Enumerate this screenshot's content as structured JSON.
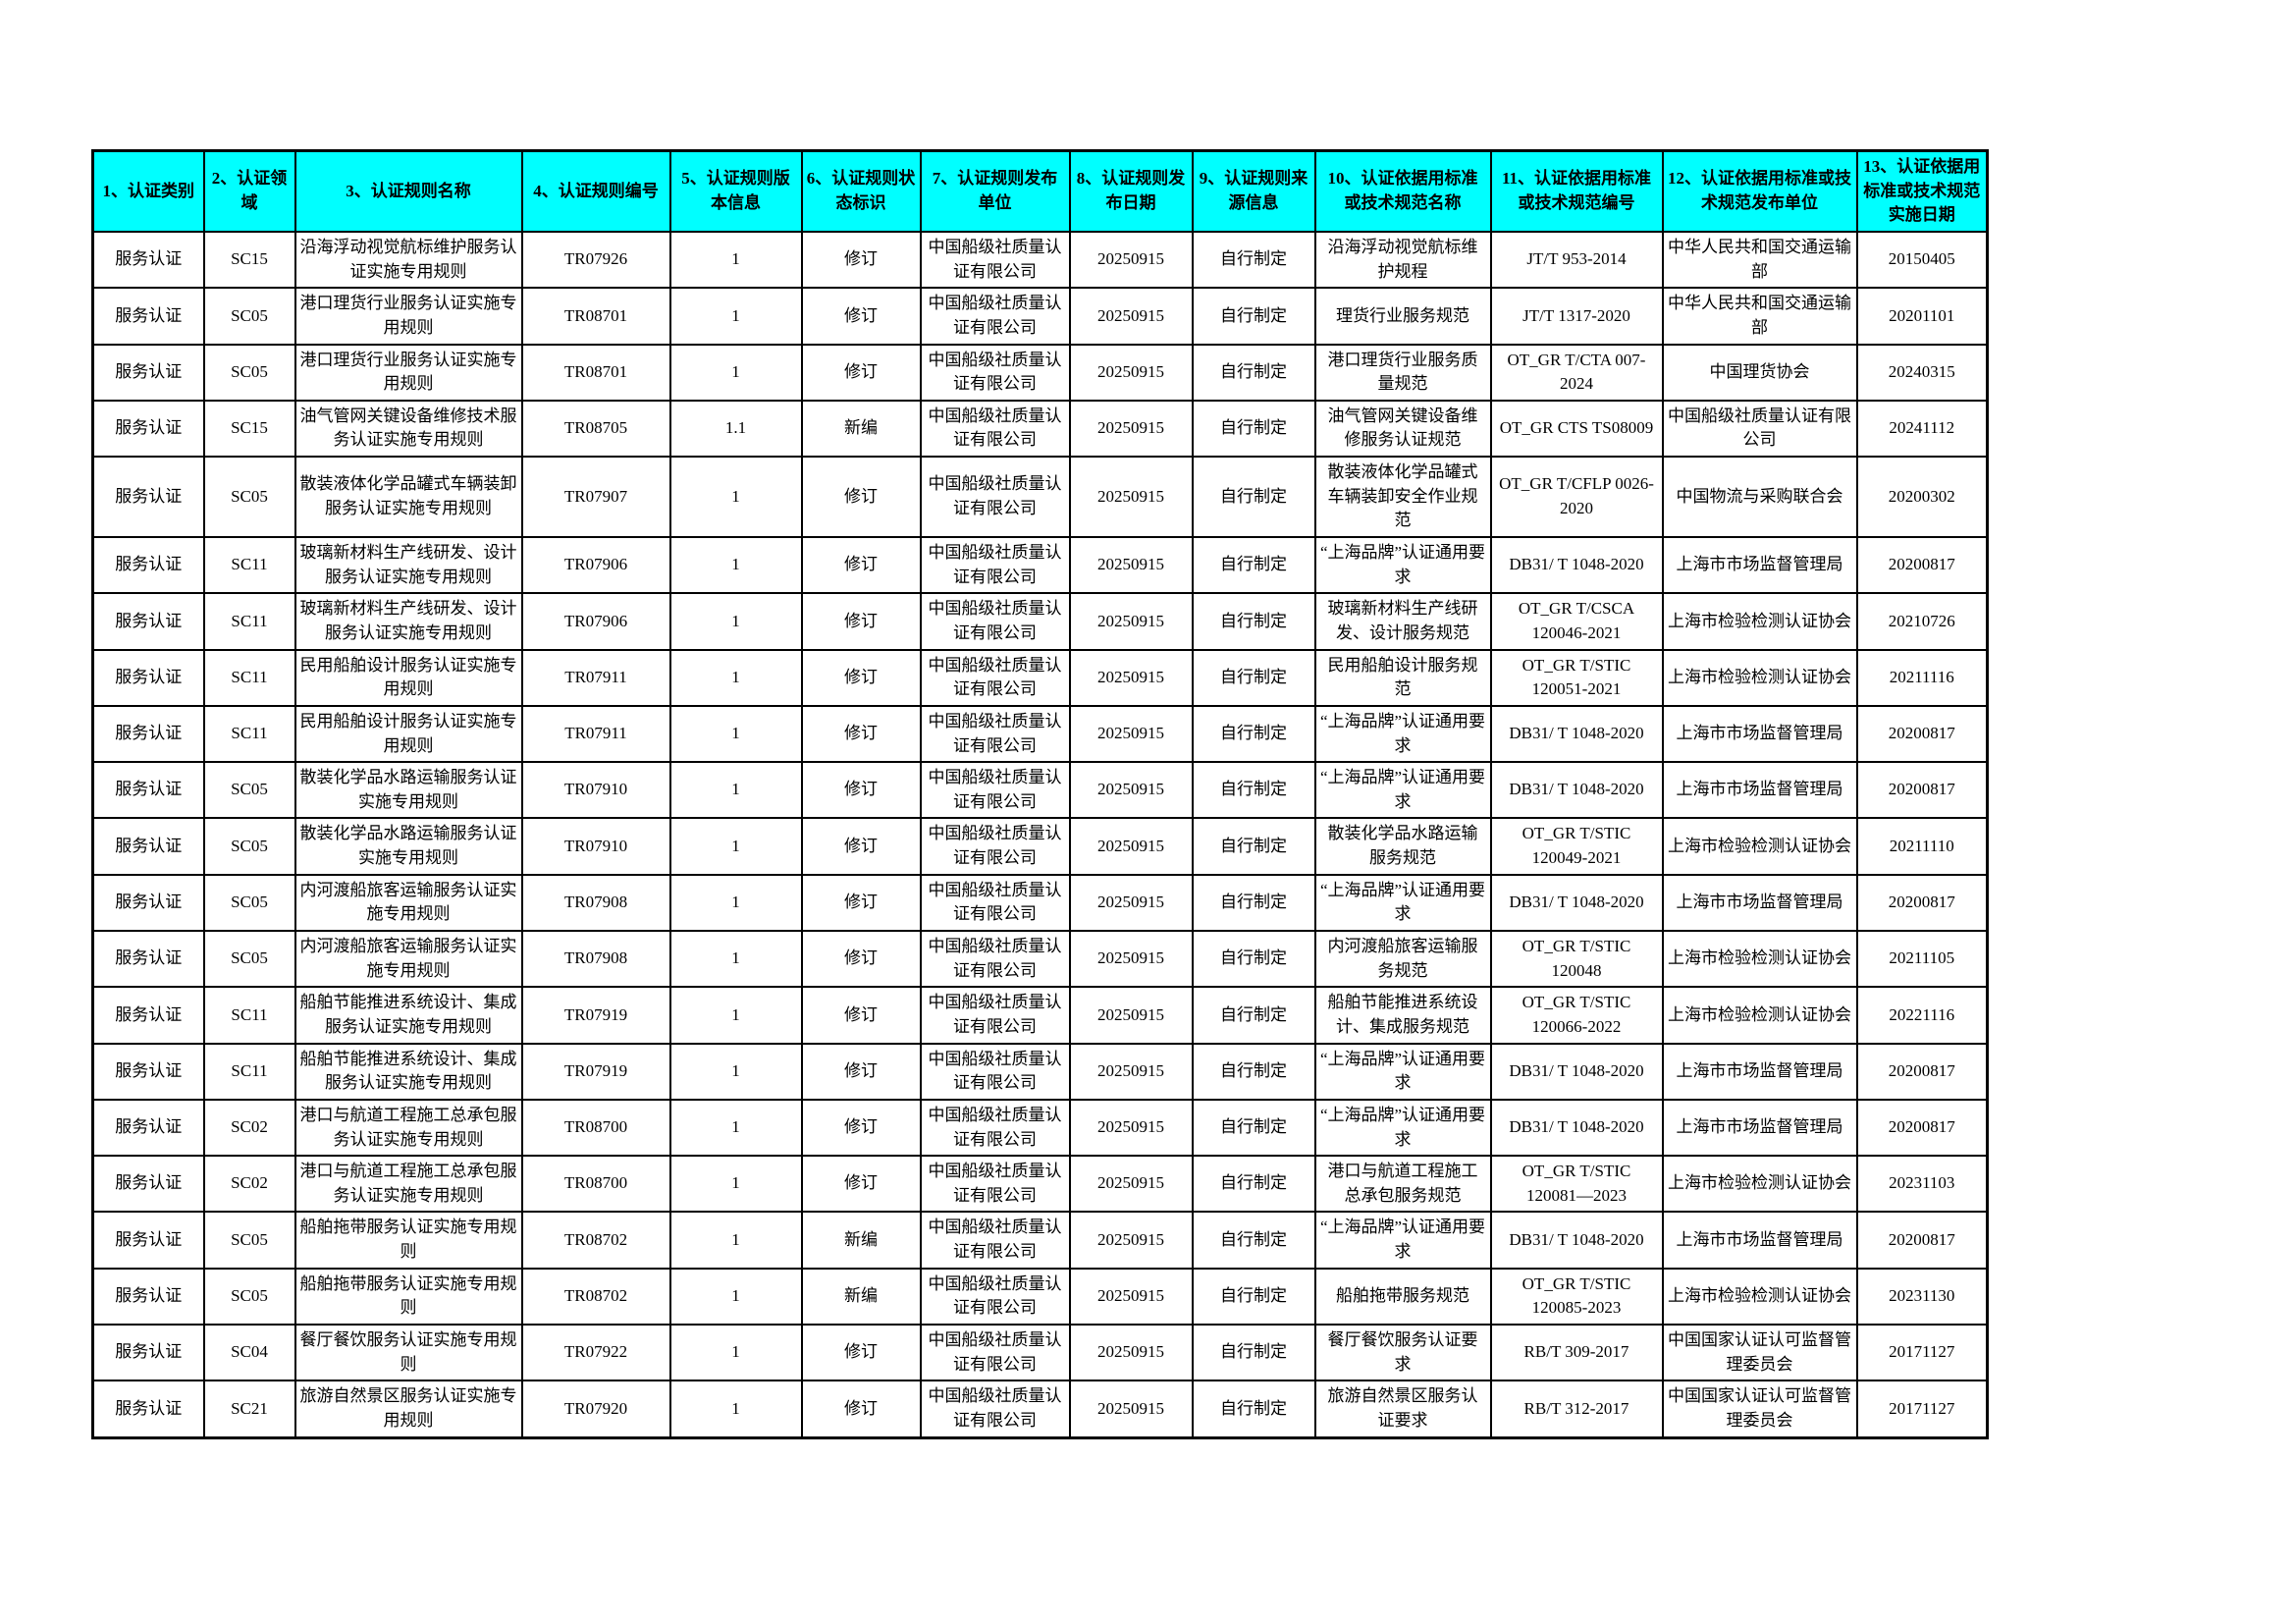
{
  "colors": {
    "header_bg": "#00FFFF",
    "border": "#000000",
    "page_bg": "#FFFFFF",
    "text": "#000000"
  },
  "table": {
    "columns": [
      "1、认证类别",
      "2、认证领域",
      "3、认证规则名称",
      "4、认证规则编号",
      "5、认证规则版本信息",
      "6、认证规则状态标识",
      "7、认证规则发布单位",
      "8、认证规则发布日期",
      "9、认证规则来源信息",
      "10、认证依据用标准或技术规范名称",
      "11、认证依据用标准或技术规范编号",
      "12、认证依据用标准或技术规范发布单位",
      "13、认证依据用标准或技术规范实施日期"
    ],
    "rows": [
      [
        "服务认证",
        "SC15",
        "沿海浮动视觉航标维护服务认证实施专用规则",
        "TR07926",
        "1",
        "修订",
        "中国船级社质量认证有限公司",
        "20250915",
        "自行制定",
        "沿海浮动视觉航标维护规程",
        "JT/T 953-2014",
        "中华人民共和国交通运输部",
        "20150405"
      ],
      [
        "服务认证",
        "SC05",
        "港口理货行业服务认证实施专用规则",
        "TR08701",
        "1",
        "修订",
        "中国船级社质量认证有限公司",
        "20250915",
        "自行制定",
        "理货行业服务规范",
        "JT/T 1317-2020",
        "中华人民共和国交通运输部",
        "20201101"
      ],
      [
        "服务认证",
        "SC05",
        "港口理货行业服务认证实施专用规则",
        "TR08701",
        "1",
        "修订",
        "中国船级社质量认证有限公司",
        "20250915",
        "自行制定",
        "港口理货行业服务质量规范",
        "OT_GR T/CTA 007-2024",
        "中国理货协会",
        "20240315"
      ],
      [
        "服务认证",
        "SC15",
        "油气管网关键设备维修技术服务认证实施专用规则",
        "TR08705",
        "1.1",
        "新编",
        "中国船级社质量认证有限公司",
        "20250915",
        "自行制定",
        "油气管网关键设备维修服务认证规范",
        "OT_GR CTS TS08009",
        "中国船级社质量认证有限公司",
        "20241112"
      ],
      [
        "服务认证",
        "SC05",
        "散装液体化学品罐式车辆装卸服务认证实施专用规则",
        "TR07907",
        "1",
        "修订",
        "中国船级社质量认证有限公司",
        "20250915",
        "自行制定",
        "散装液体化学品罐式车辆装卸安全作业规范",
        "OT_GR T/CFLP 0026-2020",
        "中国物流与采购联合会",
        "20200302"
      ],
      [
        "服务认证",
        "SC11",
        "玻璃新材料生产线研发、设计服务认证实施专用规则",
        "TR07906",
        "1",
        "修订",
        "中国船级社质量认证有限公司",
        "20250915",
        "自行制定",
        "“上海品牌”认证通用要求",
        "DB31/ T 1048-2020",
        "上海市市场监督管理局",
        "20200817"
      ],
      [
        "服务认证",
        "SC11",
        "玻璃新材料生产线研发、设计服务认证实施专用规则",
        "TR07906",
        "1",
        "修订",
        "中国船级社质量认证有限公司",
        "20250915",
        "自行制定",
        "玻璃新材料生产线研发、设计服务规范",
        "OT_GR T/CSCA 120046-2021",
        "上海市检验检测认证协会",
        "20210726"
      ],
      [
        "服务认证",
        "SC11",
        "民用船舶设计服务认证实施专用规则",
        "TR07911",
        "1",
        "修订",
        "中国船级社质量认证有限公司",
        "20250915",
        "自行制定",
        "民用船舶设计服务规范",
        "OT_GR T/STIC 120051-2021",
        "上海市检验检测认证协会",
        "20211116"
      ],
      [
        "服务认证",
        "SC11",
        "民用船舶设计服务认证实施专用规则",
        "TR07911",
        "1",
        "修订",
        "中国船级社质量认证有限公司",
        "20250915",
        "自行制定",
        "“上海品牌”认证通用要求",
        "DB31/ T 1048-2020",
        "上海市市场监督管理局",
        "20200817"
      ],
      [
        "服务认证",
        "SC05",
        "散装化学品水路运输服务认证实施专用规则",
        "TR07910",
        "1",
        "修订",
        "中国船级社质量认证有限公司",
        "20250915",
        "自行制定",
        "“上海品牌”认证通用要求",
        "DB31/ T 1048-2020",
        "上海市市场监督管理局",
        "20200817"
      ],
      [
        "服务认证",
        "SC05",
        "散装化学品水路运输服务认证实施专用规则",
        "TR07910",
        "1",
        "修订",
        "中国船级社质量认证有限公司",
        "20250915",
        "自行制定",
        "散装化学品水路运输服务规范",
        "OT_GR T/STIC 120049-2021",
        "上海市检验检测认证协会",
        "20211110"
      ],
      [
        "服务认证",
        "SC05",
        "内河渡船旅客运输服务认证实施专用规则",
        "TR07908",
        "1",
        "修订",
        "中国船级社质量认证有限公司",
        "20250915",
        "自行制定",
        "“上海品牌”认证通用要求",
        "DB31/ T 1048-2020",
        "上海市市场监督管理局",
        "20200817"
      ],
      [
        "服务认证",
        "SC05",
        "内河渡船旅客运输服务认证实施专用规则",
        "TR07908",
        "1",
        "修订",
        "中国船级社质量认证有限公司",
        "20250915",
        "自行制定",
        "内河渡船旅客运输服务规范",
        "OT_GR T/STIC 120048",
        "上海市检验检测认证协会",
        "20211105"
      ],
      [
        "服务认证",
        "SC11",
        "船舶节能推进系统设计、集成服务认证实施专用规则",
        "TR07919",
        "1",
        "修订",
        "中国船级社质量认证有限公司",
        "20250915",
        "自行制定",
        "船舶节能推进系统设计、集成服务规范",
        "OT_GR T/STIC 120066-2022",
        "上海市检验检测认证协会",
        "20221116"
      ],
      [
        "服务认证",
        "SC11",
        "船舶节能推进系统设计、集成服务认证实施专用规则",
        "TR07919",
        "1",
        "修订",
        "中国船级社质量认证有限公司",
        "20250915",
        "自行制定",
        "“上海品牌”认证通用要求",
        "DB31/ T 1048-2020",
        "上海市市场监督管理局",
        "20200817"
      ],
      [
        "服务认证",
        "SC02",
        "港口与航道工程施工总承包服务认证实施专用规则",
        "TR08700",
        "1",
        "修订",
        "中国船级社质量认证有限公司",
        "20250915",
        "自行制定",
        "“上海品牌”认证通用要求",
        "DB31/ T 1048-2020",
        "上海市市场监督管理局",
        "20200817"
      ],
      [
        "服务认证",
        "SC02",
        "港口与航道工程施工总承包服务认证实施专用规则",
        "TR08700",
        "1",
        "修订",
        "中国船级社质量认证有限公司",
        "20250915",
        "自行制定",
        "港口与航道工程施工总承包服务规范",
        "OT_GR T/STIC 120081—2023",
        "上海市检验检测认证协会",
        "20231103"
      ],
      [
        "服务认证",
        "SC05",
        "船舶拖带服务认证实施专用规则",
        "TR08702",
        "1",
        "新编",
        "中国船级社质量认证有限公司",
        "20250915",
        "自行制定",
        "“上海品牌”认证通用要求",
        "DB31/ T 1048-2020",
        "上海市市场监督管理局",
        "20200817"
      ],
      [
        "服务认证",
        "SC05",
        "船舶拖带服务认证实施专用规则",
        "TR08702",
        "1",
        "新编",
        "中国船级社质量认证有限公司",
        "20250915",
        "自行制定",
        "船舶拖带服务规范",
        "OT_GR T/STIC 120085-2023",
        "上海市检验检测认证协会",
        "20231130"
      ],
      [
        "服务认证",
        "SC04",
        "餐厅餐饮服务认证实施专用规则",
        "TR07922",
        "1",
        "修订",
        "中国船级社质量认证有限公司",
        "20250915",
        "自行制定",
        "餐厅餐饮服务认证要求",
        "RB/T 309-2017",
        "中国国家认证认可监督管理委员会",
        "20171127"
      ],
      [
        "服务认证",
        "SC21",
        "旅游自然景区服务认证实施专用规则",
        "TR07920",
        "1",
        "修订",
        "中国船级社质量认证有限公司",
        "20250915",
        "自行制定",
        "旅游自然景区服务认证要求",
        "RB/T 312-2017",
        "中国国家认证认可监督管理委员会",
        "20171127"
      ]
    ]
  }
}
